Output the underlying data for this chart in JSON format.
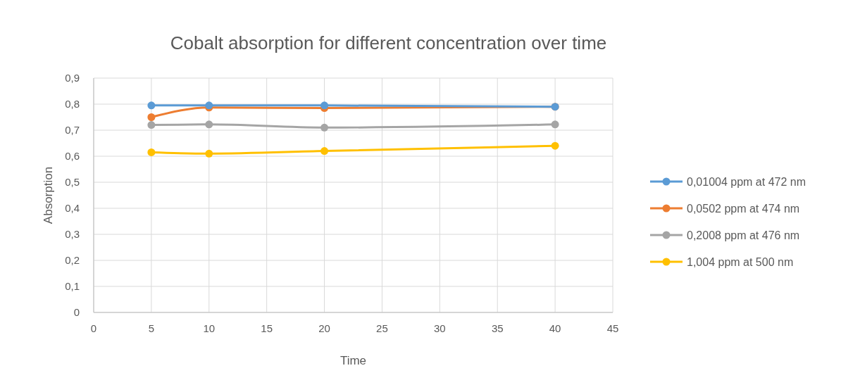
{
  "chart_data": {
    "type": "line",
    "title": "Cobalt absorption for different concentration over time",
    "xlabel": "Time",
    "ylabel": "Absorption",
    "x": [
      5,
      10,
      20,
      40
    ],
    "series": [
      {
        "name": "0,01004 ppm at 472 nm",
        "color": "#5b9bd5",
        "values": [
          0.795,
          0.795,
          0.795,
          0.79
        ]
      },
      {
        "name": "0,0502 ppm at 474 nm",
        "color": "#ed7d31",
        "values": [
          0.75,
          0.787,
          0.785,
          0.79
        ]
      },
      {
        "name": "0,2008 ppm at 476 nm",
        "color": "#a5a5a5",
        "values": [
          0.72,
          0.722,
          0.71,
          0.722
        ]
      },
      {
        "name": "1,004 ppm at 500 nm",
        "color": "#ffc000",
        "values": [
          0.615,
          0.61,
          0.62,
          0.64
        ]
      }
    ],
    "xlim": [
      0,
      45
    ],
    "xticks": [
      0,
      5,
      10,
      15,
      20,
      25,
      30,
      35,
      40,
      45
    ],
    "ylim": [
      0,
      0.9
    ],
    "yticks": [
      0,
      {
        "value": 0.1,
        "label": "0,1"
      },
      {
        "value": 0.2,
        "label": "0,2"
      },
      {
        "value": 0.3,
        "label": "0,3"
      },
      {
        "value": 0.4,
        "label": "0,4"
      },
      {
        "value": 0.5,
        "label": "0,5"
      },
      {
        "value": 0.6,
        "label": "0,6"
      },
      {
        "value": 0.7,
        "label": "0,7"
      },
      {
        "value": 0.8,
        "label": "0,8"
      },
      {
        "value": 0.9,
        "label": "0,9"
      }
    ],
    "grid": true,
    "legend": "right",
    "marker": "circle",
    "line_style": "solid"
  }
}
